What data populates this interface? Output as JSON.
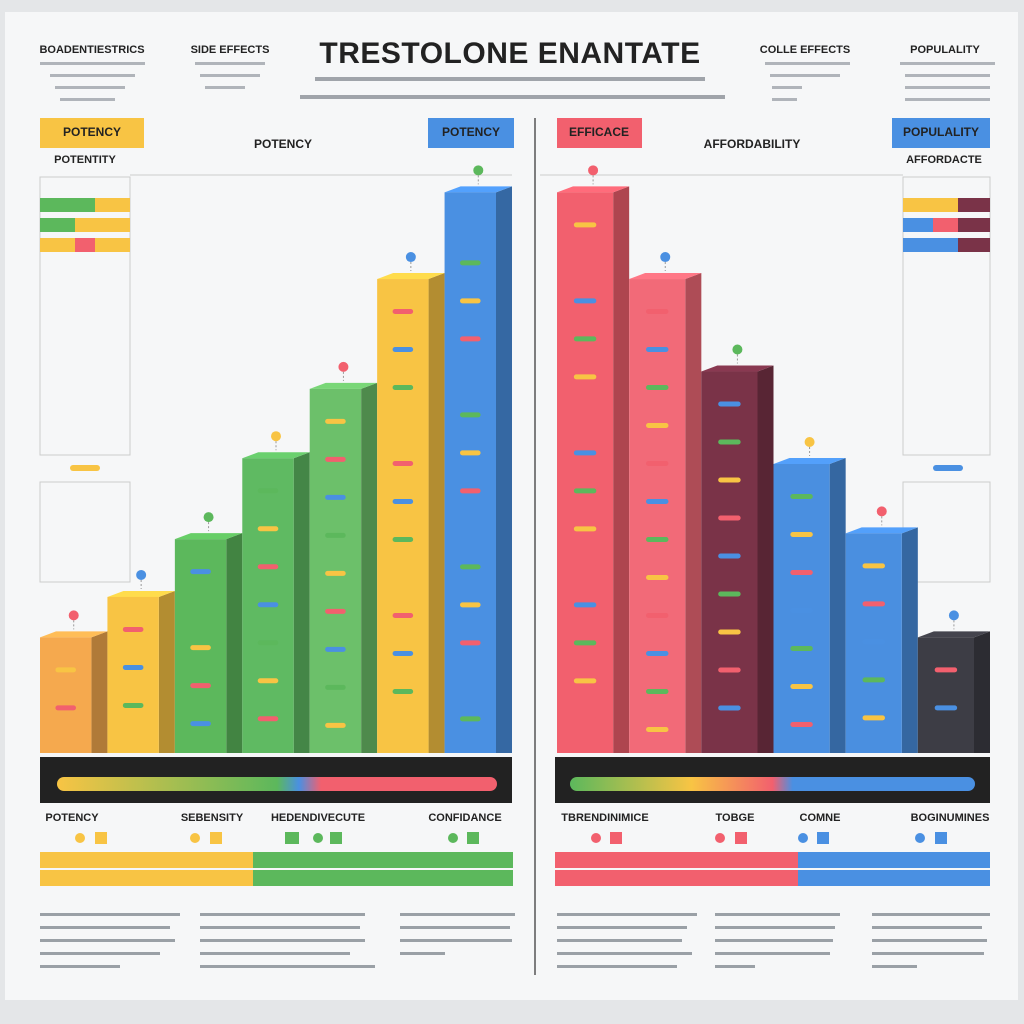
{
  "title": "TRESTOLONE ENANTATE",
  "header_labels": [
    "BOADENTIESTRICS",
    "SIDE EFFECTS",
    "COLLE EFFECTS",
    "POPULALITY"
  ],
  "panel_labels": [
    "POTENCY",
    "POTENCY",
    "POTENCY",
    "EFFICACE",
    "AFFORDABILITY",
    "POPULALITY"
  ],
  "sub_labels": [
    "POTENTITY",
    "AFFORDACTE"
  ],
  "legend_labels": [
    "POTENCY",
    "SEBENSITY",
    "HEDENDIVECUTE",
    "CONFIDANCE",
    "TBRENDINIMICE",
    "TOBGE",
    "COMNE",
    "BOGINUMINES"
  ],
  "chart_data": [
    {
      "type": "bar",
      "values": [
        20,
        27,
        37,
        51,
        63,
        82,
        97
      ],
      "colors": [
        "#f5a94e",
        "#f8c444",
        "#5cb85c",
        "#5fba62",
        "#6cc06a",
        "#f8c444",
        "#4a90e2"
      ],
      "ylim": [
        0,
        100
      ]
    },
    {
      "type": "bar",
      "values": [
        97,
        82,
        66,
        50,
        38,
        20
      ],
      "colors": [
        "#f2606e",
        "#f26a78",
        "#7a3348",
        "#4a8fe0",
        "#4a8fe0",
        "#3d3d45"
      ],
      "ylim": [
        0,
        100
      ]
    }
  ]
}
